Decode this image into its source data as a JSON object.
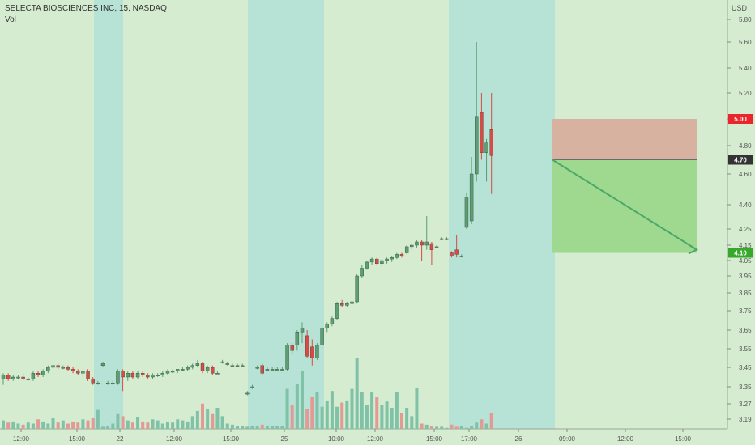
{
  "header": {
    "title": "SELECTA BIOSCIENCES INC, 15, NASDAQ",
    "indicator": "Vol",
    "currency": "USD"
  },
  "colors": {
    "background": "#d5ecd0",
    "premarket_band": "#b7e2d6",
    "up": "#5d9e73",
    "down": "#d94a45",
    "vol_up": "#7fc2a8",
    "vol_down": "#e39a94",
    "stop_zone": "#d8b2a0",
    "target_zone": "#9fd88f",
    "arrow": "#4ca86a",
    "label_red": "#e8262b",
    "label_dark": "#333333",
    "label_green": "#36a82a"
  },
  "chart_data": {
    "type": "candlestick",
    "title": "SELECTA BIOSCIENCES INC, 15, NASDAQ",
    "price_axis": {
      "currency": "USD",
      "ticks": [
        "5.80",
        "5.60",
        "5.40",
        "5.20",
        "5.00",
        "4.80",
        "4.60",
        "4.40",
        "4.25",
        "4.15",
        "4.05",
        "3.95",
        "3.85",
        "3.75",
        "3.65",
        "3.55",
        "3.45",
        "3.35",
        "3.27",
        "3.19"
      ],
      "tick_values": [
        5.8,
        5.6,
        5.4,
        5.2,
        5.0,
        4.8,
        4.6,
        4.4,
        4.25,
        4.15,
        4.05,
        3.95,
        3.85,
        3.75,
        3.65,
        3.55,
        3.45,
        3.35,
        3.27,
        3.19
      ],
      "price_labels": [
        {
          "value": 5.0,
          "text": "5.00",
          "color": "red"
        },
        {
          "value": 4.7,
          "text": "4.70",
          "color": "dark"
        },
        {
          "value": 4.1,
          "text": "4.10",
          "color": "green"
        }
      ]
    },
    "time_axis": {
      "ticks": [
        "12:00",
        "15:00",
        "22",
        "12:00",
        "15:00",
        "25",
        "10:00",
        "12:00",
        "15:00",
        "17:00",
        "26",
        "09:00",
        "12:00",
        "15:00"
      ]
    },
    "candles": [
      [
        3.39,
        3.42,
        3.36,
        3.41
      ],
      [
        3.41,
        3.42,
        3.38,
        3.39
      ],
      [
        3.39,
        3.41,
        3.38,
        3.4
      ],
      [
        3.4,
        3.41,
        3.39,
        3.4
      ],
      [
        3.4,
        3.42,
        3.38,
        3.39
      ],
      [
        3.39,
        3.4,
        3.38,
        3.39
      ],
      [
        3.39,
        3.43,
        3.38,
        3.42
      ],
      [
        3.42,
        3.43,
        3.4,
        3.41
      ],
      [
        3.41,
        3.44,
        3.4,
        3.43
      ],
      [
        3.43,
        3.46,
        3.42,
        3.45
      ],
      [
        3.45,
        3.47,
        3.43,
        3.46
      ],
      [
        3.46,
        3.47,
        3.44,
        3.45
      ],
      [
        3.45,
        3.46,
        3.44,
        3.45
      ],
      [
        3.45,
        3.46,
        3.43,
        3.44
      ],
      [
        3.44,
        3.45,
        3.42,
        3.43
      ],
      [
        3.43,
        3.44,
        3.41,
        3.42
      ],
      [
        3.42,
        3.44,
        3.4,
        3.43
      ],
      [
        3.43,
        3.44,
        3.38,
        3.39
      ],
      [
        3.39,
        3.4,
        3.36,
        3.37
      ],
      [
        3.37,
        3.38,
        3.36,
        3.37
      ],
      [
        3.46,
        3.48,
        3.45,
        3.47
      ],
      [
        3.37,
        3.38,
        3.36,
        3.37
      ],
      [
        3.37,
        3.38,
        3.36,
        3.37
      ],
      [
        3.37,
        3.44,
        3.36,
        3.43
      ],
      [
        3.43,
        3.44,
        3.33,
        3.4
      ],
      [
        3.4,
        3.43,
        3.38,
        3.42
      ],
      [
        3.42,
        3.43,
        3.39,
        3.4
      ],
      [
        3.4,
        3.43,
        3.39,
        3.42
      ],
      [
        3.42,
        3.43,
        3.4,
        3.41
      ],
      [
        3.41,
        3.42,
        3.39,
        3.4
      ],
      [
        3.4,
        3.42,
        3.39,
        3.41
      ],
      [
        3.41,
        3.42,
        3.4,
        3.41
      ],
      [
        3.41,
        3.43,
        3.4,
        3.42
      ],
      [
        3.42,
        3.44,
        3.41,
        3.43
      ],
      [
        3.43,
        3.44,
        3.42,
        3.43
      ],
      [
        3.43,
        3.44,
        3.42,
        3.44
      ],
      [
        3.44,
        3.45,
        3.43,
        3.44
      ],
      [
        3.44,
        3.46,
        3.43,
        3.45
      ],
      [
        3.45,
        3.47,
        3.44,
        3.46
      ],
      [
        3.46,
        3.49,
        3.45,
        3.47
      ],
      [
        3.47,
        3.48,
        3.42,
        3.43
      ],
      [
        3.43,
        3.46,
        3.42,
        3.45
      ],
      [
        3.45,
        3.46,
        3.41,
        3.42
      ],
      [
        3.42,
        3.43,
        3.42,
        3.42
      ],
      [
        3.48,
        3.49,
        3.47,
        3.48
      ],
      [
        3.47,
        3.48,
        3.46,
        3.47
      ],
      [
        3.46,
        3.47,
        3.46,
        3.46
      ],
      [
        3.46,
        3.47,
        3.46,
        3.46
      ],
      [
        3.46,
        3.47,
        3.46,
        3.46
      ],
      [
        3.32,
        3.33,
        3.31,
        3.32
      ],
      [
        3.35,
        3.36,
        3.34,
        3.35
      ],
      [
        3.45,
        3.46,
        3.44,
        3.45
      ],
      [
        3.46,
        3.47,
        3.41,
        3.42
      ],
      [
        3.44,
        3.45,
        3.44,
        3.44
      ],
      [
        3.44,
        3.45,
        3.44,
        3.44
      ],
      [
        3.44,
        3.45,
        3.44,
        3.44
      ],
      [
        3.44,
        3.45,
        3.44,
        3.44
      ],
      [
        3.44,
        3.58,
        3.43,
        3.57
      ],
      [
        3.57,
        3.58,
        3.52,
        3.54
      ],
      [
        3.57,
        3.65,
        3.54,
        3.64
      ],
      [
        3.64,
        3.69,
        3.58,
        3.66
      ],
      [
        3.62,
        3.65,
        3.5,
        3.51
      ],
      [
        3.56,
        3.6,
        3.46,
        3.5
      ],
      [
        3.5,
        3.58,
        3.49,
        3.57
      ],
      [
        3.57,
        3.67,
        3.55,
        3.66
      ],
      [
        3.66,
        3.69,
        3.64,
        3.68
      ],
      [
        3.68,
        3.72,
        3.67,
        3.71
      ],
      [
        3.71,
        3.8,
        3.7,
        3.79
      ],
      [
        3.79,
        3.81,
        3.77,
        3.78
      ],
      [
        3.78,
        3.8,
        3.77,
        3.79
      ],
      [
        3.79,
        3.81,
        3.78,
        3.8
      ],
      [
        3.8,
        3.96,
        3.79,
        3.95
      ],
      [
        3.95,
        4.02,
        3.94,
        4.0
      ],
      [
        4.0,
        4.05,
        3.99,
        4.04
      ],
      [
        4.04,
        4.07,
        4.02,
        4.06
      ],
      [
        4.06,
        4.07,
        4.02,
        4.03
      ],
      [
        4.03,
        4.06,
        4.01,
        4.05
      ],
      [
        4.05,
        4.07,
        4.03,
        4.06
      ],
      [
        4.06,
        4.08,
        4.04,
        4.07
      ],
      [
        4.07,
        4.1,
        4.06,
        4.09
      ],
      [
        4.09,
        4.1,
        4.07,
        4.08
      ],
      [
        4.1,
        4.15,
        4.09,
        4.14
      ],
      [
        4.14,
        4.16,
        4.12,
        4.15
      ],
      [
        4.15,
        4.18,
        4.13,
        4.17
      ],
      [
        4.17,
        4.18,
        4.05,
        4.15
      ],
      [
        4.15,
        4.33,
        4.12,
        4.17
      ],
      [
        4.16,
        4.17,
        4.02,
        4.12
      ],
      [
        4.14,
        4.15,
        4.14,
        4.14
      ],
      [
        4.19,
        4.2,
        4.18,
        4.19
      ],
      [
        4.19,
        4.2,
        4.18,
        4.19
      ],
      [
        4.1,
        4.11,
        4.07,
        4.08
      ],
      [
        4.12,
        4.21,
        4.07,
        4.09
      ],
      [
        4.08,
        4.09,
        4.07,
        4.08
      ],
      [
        4.26,
        4.48,
        4.25,
        4.45
      ],
      [
        4.3,
        4.72,
        4.28,
        4.6
      ],
      [
        4.6,
        5.6,
        4.55,
        5.02
      ],
      [
        5.05,
        5.2,
        4.7,
        4.75
      ],
      [
        4.75,
        4.85,
        4.55,
        4.82
      ],
      [
        4.92,
        5.2,
        4.47,
        4.73
      ]
    ],
    "volume": [
      0.08,
      0.06,
      0.07,
      0.05,
      0.04,
      0.06,
      0.05,
      0.09,
      0.07,
      0.05,
      0.1,
      0.06,
      0.08,
      0.05,
      0.07,
      0.06,
      0.09,
      0.08,
      0.1,
      0.18,
      0.02,
      0.03,
      0.05,
      0.14,
      0.12,
      0.08,
      0.06,
      0.11,
      0.07,
      0.06,
      0.09,
      0.08,
      0.05,
      0.07,
      0.06,
      0.09,
      0.08,
      0.07,
      0.12,
      0.17,
      0.24,
      0.19,
      0.14,
      0.2,
      0.12,
      0.05,
      0.04,
      0.03,
      0.03,
      0.02,
      0.03,
      0.03,
      0.04,
      0.03,
      0.03,
      0.03,
      0.03,
      0.38,
      0.23,
      0.43,
      0.55,
      0.19,
      0.3,
      0.35,
      0.21,
      0.27,
      0.36,
      0.21,
      0.25,
      0.27,
      0.38,
      0.67,
      0.35,
      0.23,
      0.35,
      0.3,
      0.23,
      0.26,
      0.2,
      0.35,
      0.15,
      0.2,
      0.12,
      0.39,
      0.05,
      0.04,
      0.03,
      0.02,
      0.02,
      0.01,
      0.04,
      0.02,
      0.03,
      0.01,
      0.03,
      0.06,
      0.09,
      0.05,
      0.15
    ],
    "sessions_premarket": [
      [
        116,
        152
      ],
      [
        306,
        400
      ],
      [
        554,
        685
      ]
    ],
    "trade_plan": {
      "entry": 4.7,
      "stop": 5.0,
      "target": 4.1,
      "direction": "short"
    }
  }
}
